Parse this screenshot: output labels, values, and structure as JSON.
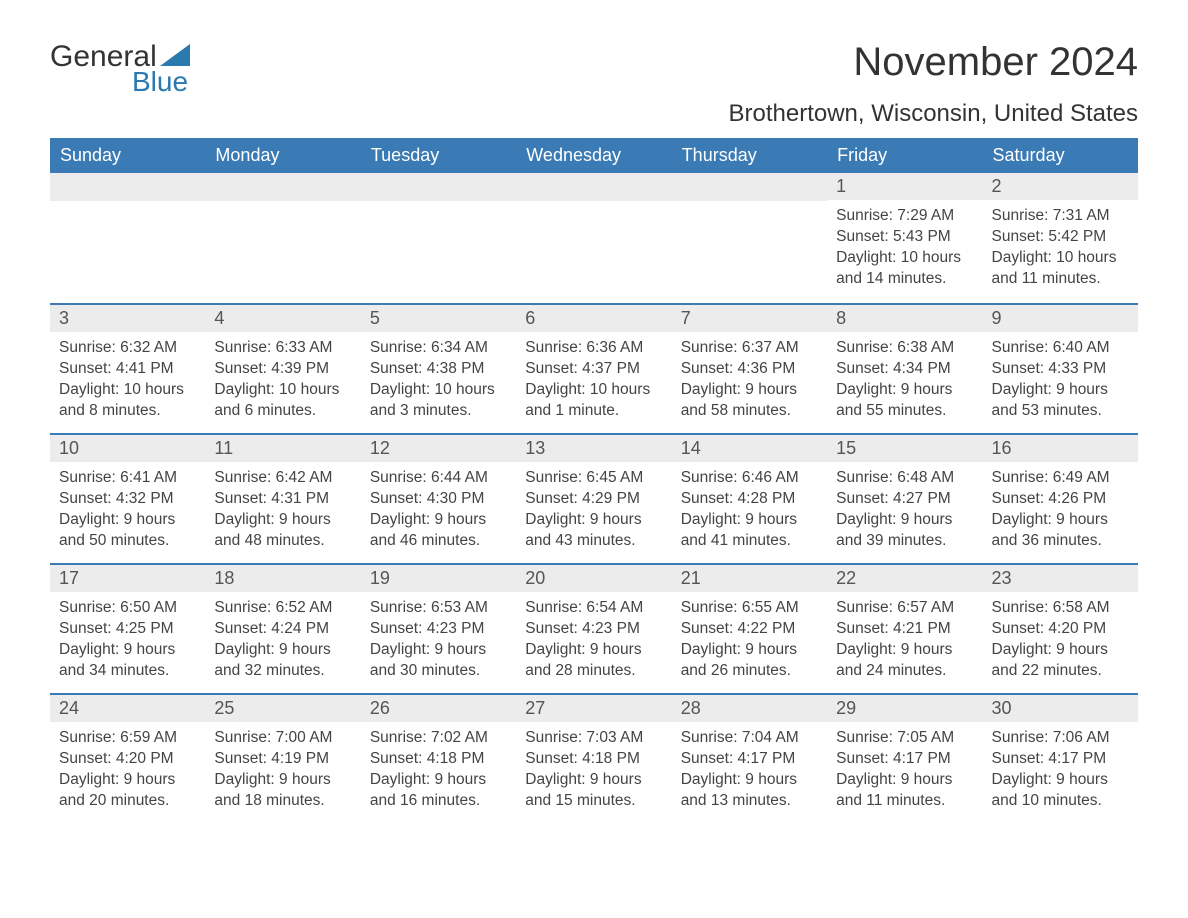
{
  "logo": {
    "text_a": "General",
    "text_b": "Blue",
    "triangle_color": "#2a7ab0"
  },
  "title": "November 2024",
  "location": "Brothertown, Wisconsin, United States",
  "colors": {
    "header_bg": "#3a7ab5",
    "header_text": "#ffffff",
    "row_border": "#3a7ab5",
    "daynum_bg": "#ececec",
    "text": "#333333",
    "logo_blue": "#2a7ab0"
  },
  "weekdays": [
    "Sunday",
    "Monday",
    "Tuesday",
    "Wednesday",
    "Thursday",
    "Friday",
    "Saturday"
  ],
  "weeks": [
    [
      {
        "day": "",
        "sunrise": "",
        "sunset": "",
        "daylight": ""
      },
      {
        "day": "",
        "sunrise": "",
        "sunset": "",
        "daylight": ""
      },
      {
        "day": "",
        "sunrise": "",
        "sunset": "",
        "daylight": ""
      },
      {
        "day": "",
        "sunrise": "",
        "sunset": "",
        "daylight": ""
      },
      {
        "day": "",
        "sunrise": "",
        "sunset": "",
        "daylight": ""
      },
      {
        "day": "1",
        "sunrise": "Sunrise: 7:29 AM",
        "sunset": "Sunset: 5:43 PM",
        "daylight": "Daylight: 10 hours and 14 minutes."
      },
      {
        "day": "2",
        "sunrise": "Sunrise: 7:31 AM",
        "sunset": "Sunset: 5:42 PM",
        "daylight": "Daylight: 10 hours and 11 minutes."
      }
    ],
    [
      {
        "day": "3",
        "sunrise": "Sunrise: 6:32 AM",
        "sunset": "Sunset: 4:41 PM",
        "daylight": "Daylight: 10 hours and 8 minutes."
      },
      {
        "day": "4",
        "sunrise": "Sunrise: 6:33 AM",
        "sunset": "Sunset: 4:39 PM",
        "daylight": "Daylight: 10 hours and 6 minutes."
      },
      {
        "day": "5",
        "sunrise": "Sunrise: 6:34 AM",
        "sunset": "Sunset: 4:38 PM",
        "daylight": "Daylight: 10 hours and 3 minutes."
      },
      {
        "day": "6",
        "sunrise": "Sunrise: 6:36 AM",
        "sunset": "Sunset: 4:37 PM",
        "daylight": "Daylight: 10 hours and 1 minute."
      },
      {
        "day": "7",
        "sunrise": "Sunrise: 6:37 AM",
        "sunset": "Sunset: 4:36 PM",
        "daylight": "Daylight: 9 hours and 58 minutes."
      },
      {
        "day": "8",
        "sunrise": "Sunrise: 6:38 AM",
        "sunset": "Sunset: 4:34 PM",
        "daylight": "Daylight: 9 hours and 55 minutes."
      },
      {
        "day": "9",
        "sunrise": "Sunrise: 6:40 AM",
        "sunset": "Sunset: 4:33 PM",
        "daylight": "Daylight: 9 hours and 53 minutes."
      }
    ],
    [
      {
        "day": "10",
        "sunrise": "Sunrise: 6:41 AM",
        "sunset": "Sunset: 4:32 PM",
        "daylight": "Daylight: 9 hours and 50 minutes."
      },
      {
        "day": "11",
        "sunrise": "Sunrise: 6:42 AM",
        "sunset": "Sunset: 4:31 PM",
        "daylight": "Daylight: 9 hours and 48 minutes."
      },
      {
        "day": "12",
        "sunrise": "Sunrise: 6:44 AM",
        "sunset": "Sunset: 4:30 PM",
        "daylight": "Daylight: 9 hours and 46 minutes."
      },
      {
        "day": "13",
        "sunrise": "Sunrise: 6:45 AM",
        "sunset": "Sunset: 4:29 PM",
        "daylight": "Daylight: 9 hours and 43 minutes."
      },
      {
        "day": "14",
        "sunrise": "Sunrise: 6:46 AM",
        "sunset": "Sunset: 4:28 PM",
        "daylight": "Daylight: 9 hours and 41 minutes."
      },
      {
        "day": "15",
        "sunrise": "Sunrise: 6:48 AM",
        "sunset": "Sunset: 4:27 PM",
        "daylight": "Daylight: 9 hours and 39 minutes."
      },
      {
        "day": "16",
        "sunrise": "Sunrise: 6:49 AM",
        "sunset": "Sunset: 4:26 PM",
        "daylight": "Daylight: 9 hours and 36 minutes."
      }
    ],
    [
      {
        "day": "17",
        "sunrise": "Sunrise: 6:50 AM",
        "sunset": "Sunset: 4:25 PM",
        "daylight": "Daylight: 9 hours and 34 minutes."
      },
      {
        "day": "18",
        "sunrise": "Sunrise: 6:52 AM",
        "sunset": "Sunset: 4:24 PM",
        "daylight": "Daylight: 9 hours and 32 minutes."
      },
      {
        "day": "19",
        "sunrise": "Sunrise: 6:53 AM",
        "sunset": "Sunset: 4:23 PM",
        "daylight": "Daylight: 9 hours and 30 minutes."
      },
      {
        "day": "20",
        "sunrise": "Sunrise: 6:54 AM",
        "sunset": "Sunset: 4:23 PM",
        "daylight": "Daylight: 9 hours and 28 minutes."
      },
      {
        "day": "21",
        "sunrise": "Sunrise: 6:55 AM",
        "sunset": "Sunset: 4:22 PM",
        "daylight": "Daylight: 9 hours and 26 minutes."
      },
      {
        "day": "22",
        "sunrise": "Sunrise: 6:57 AM",
        "sunset": "Sunset: 4:21 PM",
        "daylight": "Daylight: 9 hours and 24 minutes."
      },
      {
        "day": "23",
        "sunrise": "Sunrise: 6:58 AM",
        "sunset": "Sunset: 4:20 PM",
        "daylight": "Daylight: 9 hours and 22 minutes."
      }
    ],
    [
      {
        "day": "24",
        "sunrise": "Sunrise: 6:59 AM",
        "sunset": "Sunset: 4:20 PM",
        "daylight": "Daylight: 9 hours and 20 minutes."
      },
      {
        "day": "25",
        "sunrise": "Sunrise: 7:00 AM",
        "sunset": "Sunset: 4:19 PM",
        "daylight": "Daylight: 9 hours and 18 minutes."
      },
      {
        "day": "26",
        "sunrise": "Sunrise: 7:02 AM",
        "sunset": "Sunset: 4:18 PM",
        "daylight": "Daylight: 9 hours and 16 minutes."
      },
      {
        "day": "27",
        "sunrise": "Sunrise: 7:03 AM",
        "sunset": "Sunset: 4:18 PM",
        "daylight": "Daylight: 9 hours and 15 minutes."
      },
      {
        "day": "28",
        "sunrise": "Sunrise: 7:04 AM",
        "sunset": "Sunset: 4:17 PM",
        "daylight": "Daylight: 9 hours and 13 minutes."
      },
      {
        "day": "29",
        "sunrise": "Sunrise: 7:05 AM",
        "sunset": "Sunset: 4:17 PM",
        "daylight": "Daylight: 9 hours and 11 minutes."
      },
      {
        "day": "30",
        "sunrise": "Sunrise: 7:06 AM",
        "sunset": "Sunset: 4:17 PM",
        "daylight": "Daylight: 9 hours and 10 minutes."
      }
    ]
  ]
}
